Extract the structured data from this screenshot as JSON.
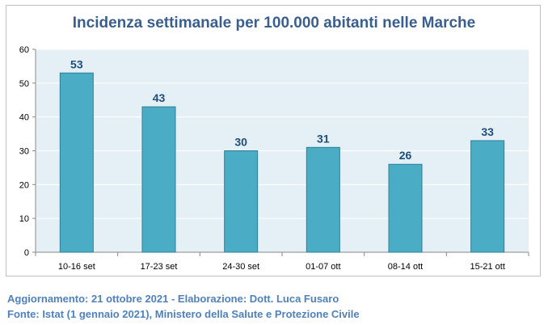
{
  "chart_data": {
    "type": "bar",
    "title": "Incidenza settimanale per 100.000 abitanti nelle Marche",
    "categories": [
      "10-16 set",
      "17-23 set",
      "24-30 set",
      "01-07 ott",
      "08-14 ott",
      "15-21 ott"
    ],
    "values": [
      53,
      43,
      30,
      31,
      26,
      33
    ],
    "xlabel": "",
    "ylabel": "",
    "ylim": [
      0,
      60
    ],
    "yticks": [
      0,
      10,
      20,
      30,
      40,
      50,
      60
    ],
    "grid": true,
    "legend": "none",
    "data_labels": true
  },
  "colors": {
    "bar_fill": "#4bacc6",
    "bar_stroke": "#2e7f94",
    "plot_bg": "#e4eff6",
    "title": "#3a5f8f",
    "data_label": "#1f4e79",
    "footer": "#4f81bd"
  },
  "footer": {
    "line1": "Aggiornamento: 21 ottobre 2021 - Elaborazione: Dott. Luca Fusaro",
    "line2": "Fonte: Istat (1 gennaio 2021), Ministero della Salute e Protezione Civile"
  }
}
